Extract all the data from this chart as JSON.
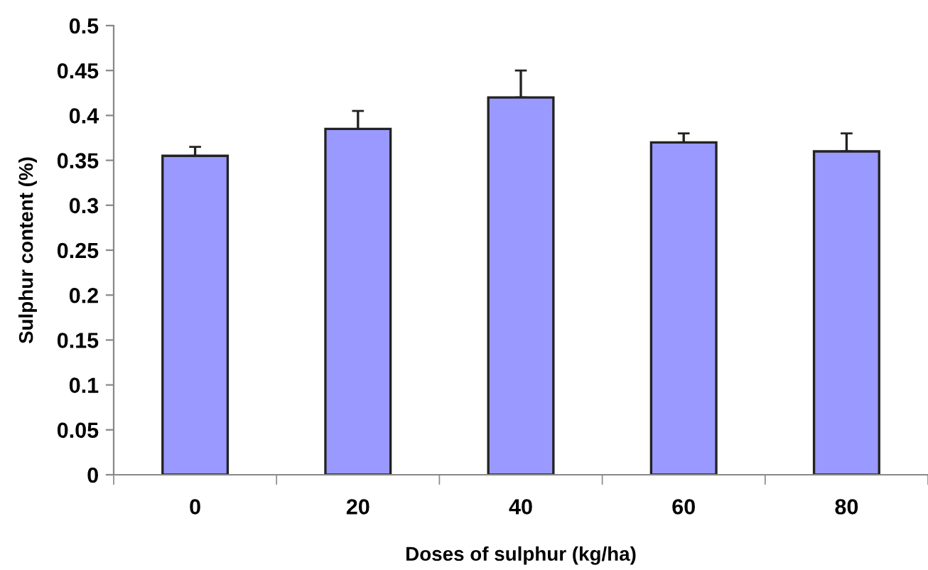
{
  "chart_data": {
    "type": "bar",
    "xlabel": "Doses of sulphur (kg/ha)",
    "ylabel": "Sulphur content (%)",
    "categories": [
      "0",
      "20",
      "40",
      "60",
      "80"
    ],
    "values": [
      0.355,
      0.385,
      0.42,
      0.37,
      0.36
    ],
    "errors": [
      [
        0.355,
        0.365
      ],
      [
        0.385,
        0.405
      ],
      [
        0.42,
        0.45
      ],
      [
        0.37,
        0.38
      ],
      [
        0.36,
        0.38
      ]
    ],
    "color": "#9999ff",
    "ylim": [
      0,
      0.5
    ],
    "yticks": [
      0,
      0.05,
      0.1,
      0.15,
      0.2,
      0.25,
      0.3,
      0.35,
      0.4,
      0.45,
      0.5
    ],
    "grid": false
  }
}
